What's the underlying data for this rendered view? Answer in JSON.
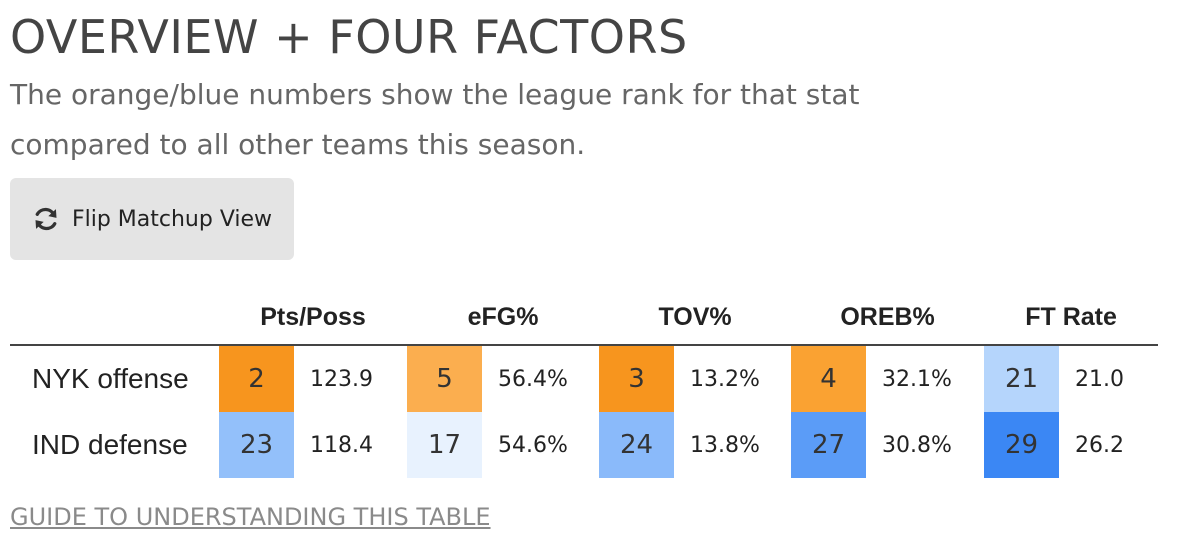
{
  "title": "OVERVIEW + FOUR FACTORS",
  "subtitle": "The orange/blue numbers show the league rank for that stat compared to all other teams this season.",
  "flip_button": {
    "label": "Flip Matchup View",
    "icon": "refresh-icon"
  },
  "table": {
    "columns": [
      "Pts/Poss",
      "eFG%",
      "TOV%",
      "OREB%",
      "FT Rate"
    ],
    "rows": [
      {
        "team": "NYK offense",
        "cells": [
          {
            "rank": "2",
            "value": "123.9",
            "color": "#f7951e"
          },
          {
            "rank": "5",
            "value": "56.4%",
            "color": "#fbae4f"
          },
          {
            "rank": "3",
            "value": "13.2%",
            "color": "#f7951e"
          },
          {
            "rank": "4",
            "value": "32.1%",
            "color": "#faa232"
          },
          {
            "rank": "21",
            "value": "21.0",
            "color": "#b5d5fc"
          }
        ]
      },
      {
        "team": "IND defense",
        "cells": [
          {
            "rank": "23",
            "value": "118.4",
            "color": "#93c0fa"
          },
          {
            "rank": "17",
            "value": "54.6%",
            "color": "#e8f2fe"
          },
          {
            "rank": "24",
            "value": "13.8%",
            "color": "#8abafa"
          },
          {
            "rank": "27",
            "value": "30.8%",
            "color": "#5b9cf7"
          },
          {
            "rank": "29",
            "value": "26.2",
            "color": "#3b87f4"
          }
        ]
      }
    ]
  },
  "guide_link": "GUIDE TO UNDERSTANDING THIS TABLE"
}
